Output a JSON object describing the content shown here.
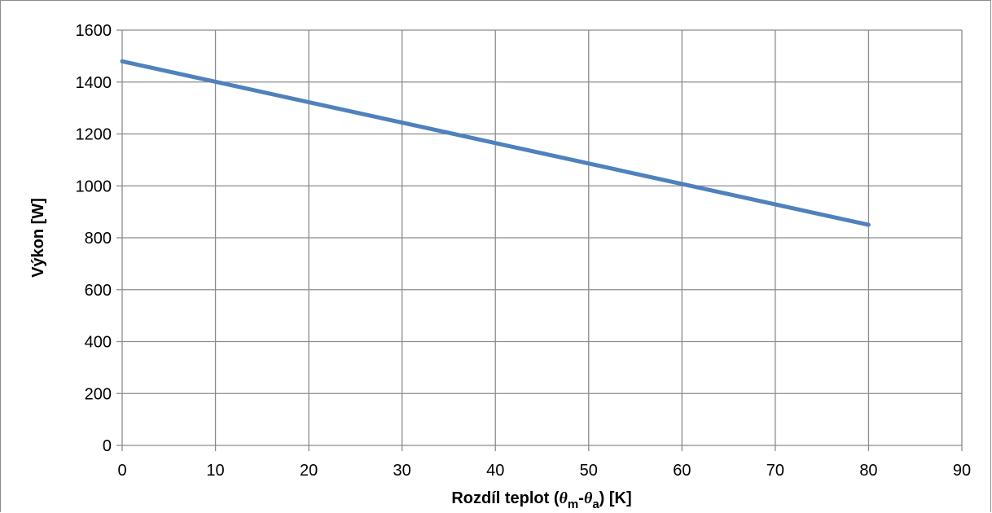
{
  "chart_data": {
    "type": "line",
    "title": "",
    "xlabel": {
      "text": "Rozdíl teplot (θm-θa) [K]",
      "prefix": "Rozdíl teplot (",
      "theta1": "θ",
      "sub1": "m",
      "dash": "-",
      "theta2": "θ",
      "sub2": "a",
      "suffix": ") [K]"
    },
    "ylabel": "Výkon [W]",
    "xlim": [
      0,
      90
    ],
    "ylim": [
      0,
      1600
    ],
    "xticks": [
      0,
      10,
      20,
      30,
      40,
      50,
      60,
      70,
      80,
      90
    ],
    "yticks": [
      0,
      200,
      400,
      600,
      800,
      1000,
      1200,
      1400,
      1600
    ],
    "grid": true,
    "legend": "none",
    "series": [
      {
        "color": "#4f81bd",
        "x": [
          0,
          80
        ],
        "y": [
          1480,
          850
        ]
      }
    ]
  }
}
